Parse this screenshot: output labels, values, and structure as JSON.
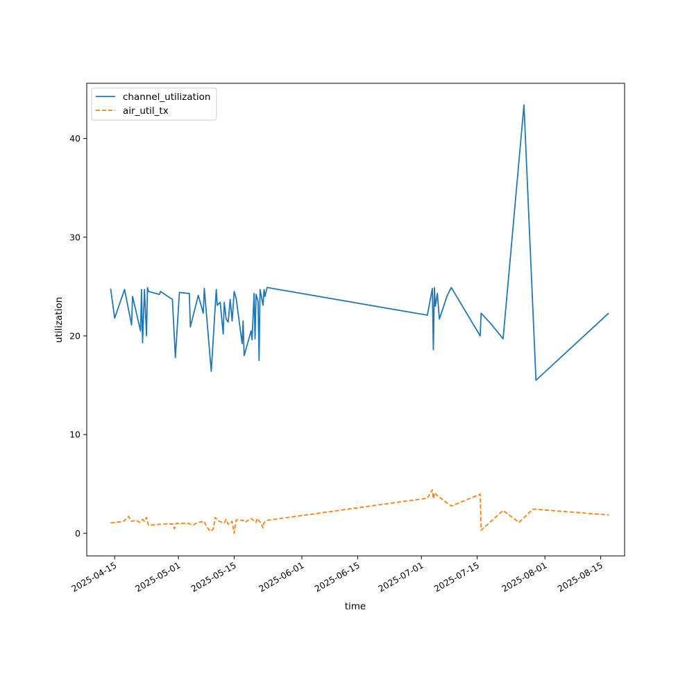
{
  "chart_data": {
    "type": "line",
    "title": "",
    "xlabel": "time",
    "ylabel": "utilization",
    "x_ticks": [
      "2025-04-15",
      "2025-05-01",
      "2025-05-15",
      "2025-06-01",
      "2025-06-15",
      "2025-07-01",
      "2025-07-15",
      "2025-08-01",
      "2025-08-15"
    ],
    "y_ticks": [
      0,
      10,
      20,
      30,
      40
    ],
    "xlim": [
      "2025-04-08",
      "2025-08-21"
    ],
    "ylim": [
      -2.3,
      45.6
    ],
    "grid": false,
    "legend_position": "upper-left",
    "series": [
      {
        "name": "channel_utilization",
        "color": "#1f77b4",
        "style": "solid",
        "points": [
          [
            "2025-04-14T00:00",
            24.8
          ],
          [
            "2025-04-15T00:00",
            21.8
          ],
          [
            "2025-04-17T12:00",
            24.7
          ],
          [
            "2025-04-19T06:00",
            21.1
          ],
          [
            "2025-04-19T12:00",
            24.0
          ],
          [
            "2025-04-21T12:00",
            20.5
          ],
          [
            "2025-04-21T18:00",
            24.7
          ],
          [
            "2025-04-22T00:00",
            19.3
          ],
          [
            "2025-04-22T12:00",
            24.7
          ],
          [
            "2025-04-23T00:00",
            20.0
          ],
          [
            "2025-04-23T06:00",
            24.9
          ],
          [
            "2025-04-23T12:00",
            24.5
          ],
          [
            "2025-04-26T06:00",
            24.2
          ],
          [
            "2025-04-26T12:00",
            24.5
          ],
          [
            "2025-04-29T12:00",
            23.7
          ],
          [
            "2025-04-30T06:00",
            17.8
          ],
          [
            "2025-05-01T06:00",
            24.4
          ],
          [
            "2025-05-03T12:00",
            24.3
          ],
          [
            "2025-05-03T18:00",
            24.3
          ],
          [
            "2025-05-04T00:00",
            20.9
          ],
          [
            "2025-05-06T00:00",
            24.1
          ],
          [
            "2025-05-07T06:00",
            22.3
          ],
          [
            "2025-05-07T12:00",
            24.8
          ],
          [
            "2025-05-09T06:00",
            16.4
          ],
          [
            "2025-05-10T12:00",
            24.7
          ],
          [
            "2025-05-10T18:00",
            23.1
          ],
          [
            "2025-05-11T12:00",
            23.4
          ],
          [
            "2025-05-12T06:00",
            20.2
          ],
          [
            "2025-05-12T12:00",
            23.4
          ],
          [
            "2025-05-13T00:00",
            21.7
          ],
          [
            "2025-05-13T12:00",
            21.4
          ],
          [
            "2025-05-14T00:00",
            23.7
          ],
          [
            "2025-05-14T12:00",
            21.5
          ],
          [
            "2025-05-15T00:00",
            24.5
          ],
          [
            "2025-05-15T12:00",
            23.8
          ],
          [
            "2025-05-17T00:00",
            19.2
          ],
          [
            "2025-05-17T06:00",
            21.5
          ],
          [
            "2025-05-17T12:00",
            18.0
          ],
          [
            "2025-05-19T06:00",
            20.5
          ],
          [
            "2025-05-19T12:00",
            19.6
          ],
          [
            "2025-05-20T00:00",
            24.3
          ],
          [
            "2025-05-20T06:00",
            19.7
          ],
          [
            "2025-05-20T12:00",
            24.2
          ],
          [
            "2025-05-21T00:00",
            23.5
          ],
          [
            "2025-05-21T06:00",
            17.5
          ],
          [
            "2025-05-21T12:00",
            24.7
          ],
          [
            "2025-05-22T06:00",
            23.1
          ],
          [
            "2025-05-22T12:00",
            24.7
          ],
          [
            "2025-05-22T18:00",
            24.0
          ],
          [
            "2025-05-23T06:00",
            24.9
          ],
          [
            "2025-07-02T12:00",
            22.1
          ],
          [
            "2025-07-03T18:00",
            24.8
          ],
          [
            "2025-07-04T00:00",
            18.6
          ],
          [
            "2025-07-04T06:00",
            24.9
          ],
          [
            "2025-07-04T12:00",
            23.0
          ],
          [
            "2025-07-05T00:00",
            24.3
          ],
          [
            "2025-07-05T12:00",
            21.7
          ],
          [
            "2025-07-07T12:00",
            24.1
          ],
          [
            "2025-07-08T12:00",
            24.9
          ],
          [
            "2025-07-15T18:00",
            20.0
          ],
          [
            "2025-07-16T00:00",
            22.3
          ],
          [
            "2025-07-18T12:00",
            21.2
          ],
          [
            "2025-07-21T12:00",
            19.7
          ],
          [
            "2025-07-26T18:00",
            43.4
          ],
          [
            "2025-07-29T18:00",
            15.5
          ],
          [
            "2025-08-17T00:00",
            22.3
          ]
        ]
      },
      {
        "name": "air_util_tx",
        "color": "#ff7f0e",
        "style": "dashed",
        "points": [
          [
            "2025-04-14T00:00",
            1.05
          ],
          [
            "2025-04-17T06:00",
            1.2
          ],
          [
            "2025-04-18T12:00",
            1.7
          ],
          [
            "2025-04-19T06:00",
            1.2
          ],
          [
            "2025-04-20T12:00",
            1.3
          ],
          [
            "2025-04-21T06:00",
            1.1
          ],
          [
            "2025-04-22T00:00",
            1.4
          ],
          [
            "2025-04-22T12:00",
            1.2
          ],
          [
            "2025-04-23T00:00",
            1.6
          ],
          [
            "2025-04-23T12:00",
            0.8
          ],
          [
            "2025-04-26T00:00",
            0.9
          ],
          [
            "2025-04-29T12:00",
            0.95
          ],
          [
            "2025-04-30T00:00",
            0.45
          ],
          [
            "2025-04-30T12:00",
            1.0
          ],
          [
            "2025-05-03T12:00",
            1.0
          ],
          [
            "2025-05-04T12:00",
            0.8
          ],
          [
            "2025-05-06T00:00",
            1.1
          ],
          [
            "2025-05-07T12:00",
            1.2
          ],
          [
            "2025-05-08T00:00",
            0.7
          ],
          [
            "2025-05-09T00:00",
            0.2
          ],
          [
            "2025-05-09T18:00",
            0.4
          ],
          [
            "2025-05-10T06:00",
            1.6
          ],
          [
            "2025-05-11T06:00",
            1.2
          ],
          [
            "2025-05-12T12:00",
            1.05
          ],
          [
            "2025-05-13T00:00",
            1.4
          ],
          [
            "2025-05-13T12:00",
            0.9
          ],
          [
            "2025-05-14T12:00",
            1.2
          ],
          [
            "2025-05-15T00:00",
            0.0
          ],
          [
            "2025-05-15T12:00",
            1.35
          ],
          [
            "2025-05-17T06:00",
            1.3
          ],
          [
            "2025-05-17T18:00",
            1.1
          ],
          [
            "2025-05-19T06:00",
            1.5
          ],
          [
            "2025-05-20T12:00",
            1.1
          ],
          [
            "2025-05-20T18:00",
            1.5
          ],
          [
            "2025-05-21T18:00",
            1.0
          ],
          [
            "2025-05-22T06:00",
            0.55
          ],
          [
            "2025-05-22T12:00",
            1.1
          ],
          [
            "2025-05-23T06:00",
            1.3
          ],
          [
            "2025-07-02T12:00",
            3.55
          ],
          [
            "2025-07-03T18:00",
            4.4
          ],
          [
            "2025-07-04T00:00",
            3.5
          ],
          [
            "2025-07-04T06:00",
            4.1
          ],
          [
            "2025-07-05T00:00",
            3.8
          ],
          [
            "2025-07-08T12:00",
            2.75
          ],
          [
            "2025-07-15T18:00",
            3.95
          ],
          [
            "2025-07-16T00:00",
            0.3
          ],
          [
            "2025-07-21T12:00",
            2.3
          ],
          [
            "2025-07-25T12:00",
            1.1
          ],
          [
            "2025-07-29T00:00",
            2.45
          ],
          [
            "2025-08-17T00:00",
            1.85
          ]
        ]
      }
    ]
  }
}
